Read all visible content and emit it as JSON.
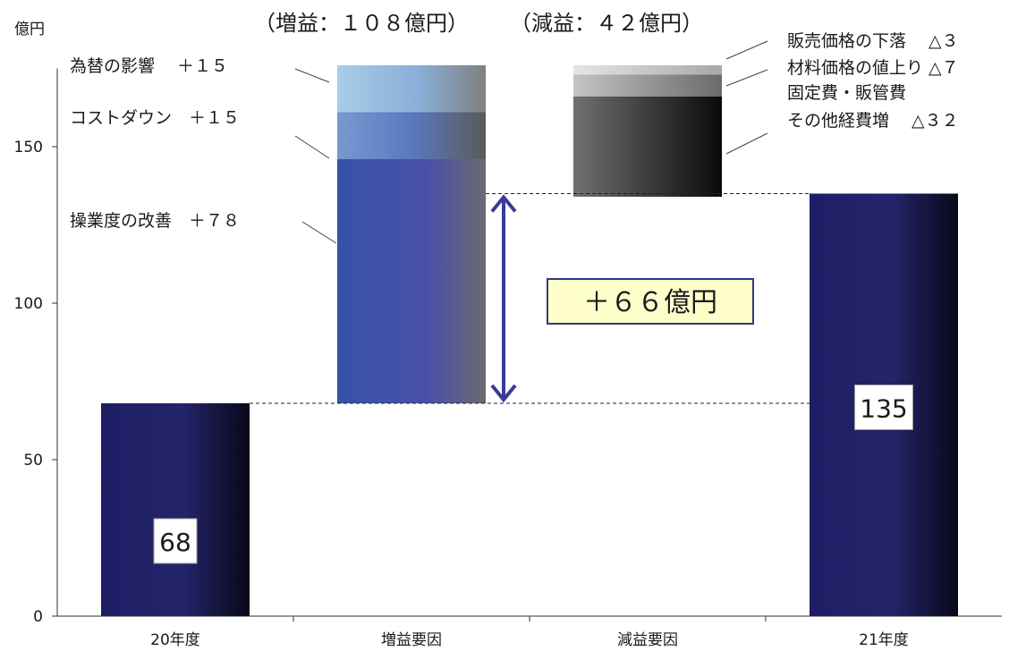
{
  "chart_data": {
    "type": "bar",
    "unit_label": "億円",
    "header": {
      "increase": "（増益：１０８億円）",
      "decrease": "（減益：４２億円）"
    },
    "categories": [
      "20年度",
      "増益要因",
      "減益要因",
      "21年度"
    ],
    "ylim": [
      0,
      175
    ],
    "yticks": [
      0,
      50,
      100,
      150
    ],
    "totals": [
      {
        "category": "20年度",
        "value": 68,
        "label": "68"
      },
      {
        "category": "21年度",
        "value": 135,
        "label": "135"
      }
    ],
    "increase_factors": [
      {
        "label": "操業度の改善　＋７８",
        "value": 78
      },
      {
        "label": "コストダウン　＋１５",
        "value": 15
      },
      {
        "label": "為替の影響　 ＋１５",
        "value": 15
      }
    ],
    "decrease_factors": [
      {
        "label": "販売価格の下落　 △３",
        "value": 3
      },
      {
        "label": "材料価格の値上り △７",
        "value": 7
      },
      {
        "label_lines": [
          "固定費・販管費",
          "その他経費増　 △３２"
        ],
        "value": 32
      }
    ],
    "net_change_label": "＋６６億円",
    "grid": false,
    "colors": {
      "total_bar": "#1e1e66",
      "operation": "#3a55a8",
      "costdown": "#7a98d0",
      "forex": "#a8cce8",
      "price_drop": "#e4e4e4",
      "material": "#bdbdbd",
      "fixed_cost": "#6a6a6a",
      "callout_fill": "#ffffcc",
      "callout_border": "#2a3a80",
      "arrow": "#3a3a9a"
    }
  }
}
